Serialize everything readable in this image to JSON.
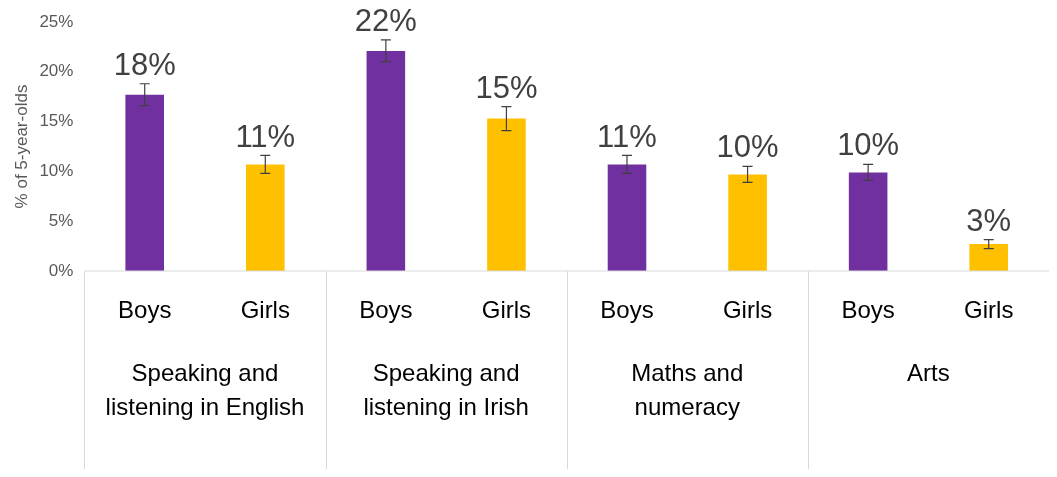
{
  "chart_data": {
    "type": "bar",
    "ylabel": "% of 5-year-olds",
    "categories": [
      "Speaking and listening in English",
      "Speaking and listening in Irish",
      "Maths and numeracy",
      "Arts"
    ],
    "series": [
      {
        "name": "Boys",
        "color": "#7030a0",
        "values": [
          17.7,
          22.1,
          10.7,
          9.9
        ],
        "errors": [
          1.1,
          1.1,
          0.9,
          0.8
        ],
        "value_labels": [
          "18%",
          "22%",
          "11%",
          "10%"
        ]
      },
      {
        "name": "Girls",
        "color": "#ffc000",
        "values": [
          10.7,
          15.3,
          9.7,
          2.7
        ],
        "errors": [
          0.9,
          1.2,
          0.8,
          0.45
        ],
        "value_labels": [
          "11%",
          "15%",
          "10%",
          "3%"
        ]
      }
    ],
    "ylim": [
      0,
      25
    ],
    "yticks": [
      {
        "value": 0,
        "label": "0%"
      },
      {
        "value": 5,
        "label": "5%"
      },
      {
        "value": 10,
        "label": "10%"
      },
      {
        "value": 15,
        "label": "15%"
      },
      {
        "value": 20,
        "label": "20%"
      },
      {
        "value": 25,
        "label": "25%"
      }
    ],
    "grid": false,
    "legend": false
  }
}
